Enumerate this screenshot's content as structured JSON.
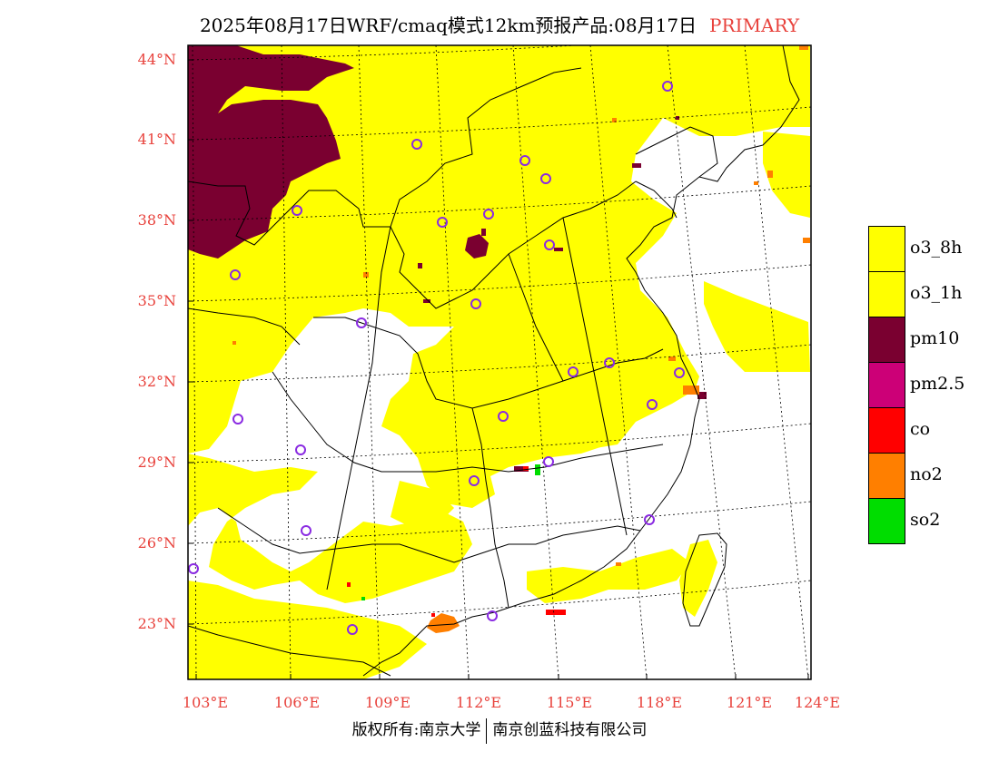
{
  "title": {
    "main": "2025年08月17日WRF/cmaq模式12km预报产品:08月17日",
    "tag": "PRIMARY"
  },
  "map": {
    "lat_labels": [
      "44°N",
      "41°N",
      "38°N",
      "35°N",
      "32°N",
      "29°N",
      "26°N",
      "23°N"
    ],
    "lon_labels": [
      "103°E",
      "106°E",
      "109°E",
      "112°E",
      "115°E",
      "118°E",
      "121°E",
      "124°E"
    ],
    "colors": {
      "o3": "#ffff00",
      "pm10": "#7a0030",
      "pm25": "#cc0077",
      "co": "#ff0000",
      "no2": "#ff7f00",
      "so2": "#00dd00",
      "station": "#8a2be2",
      "boundary": "#000000",
      "grid": "#000000"
    }
  },
  "legend": [
    {
      "label": "o3_8h",
      "color": "#ffff00"
    },
    {
      "label": "o3_1h",
      "color": "#ffff00"
    },
    {
      "label": "pm10",
      "color": "#7a0030"
    },
    {
      "label": "pm2.5",
      "color": "#cc0077"
    },
    {
      "label": "co",
      "color": "#ff0000"
    },
    {
      "label": "no2",
      "color": "#ff7f00"
    },
    {
      "label": "so2",
      "color": "#00dd00"
    }
  ],
  "footer": {
    "left": "版权所有:南京大学",
    "right": "南京创蓝科技有限公司"
  }
}
